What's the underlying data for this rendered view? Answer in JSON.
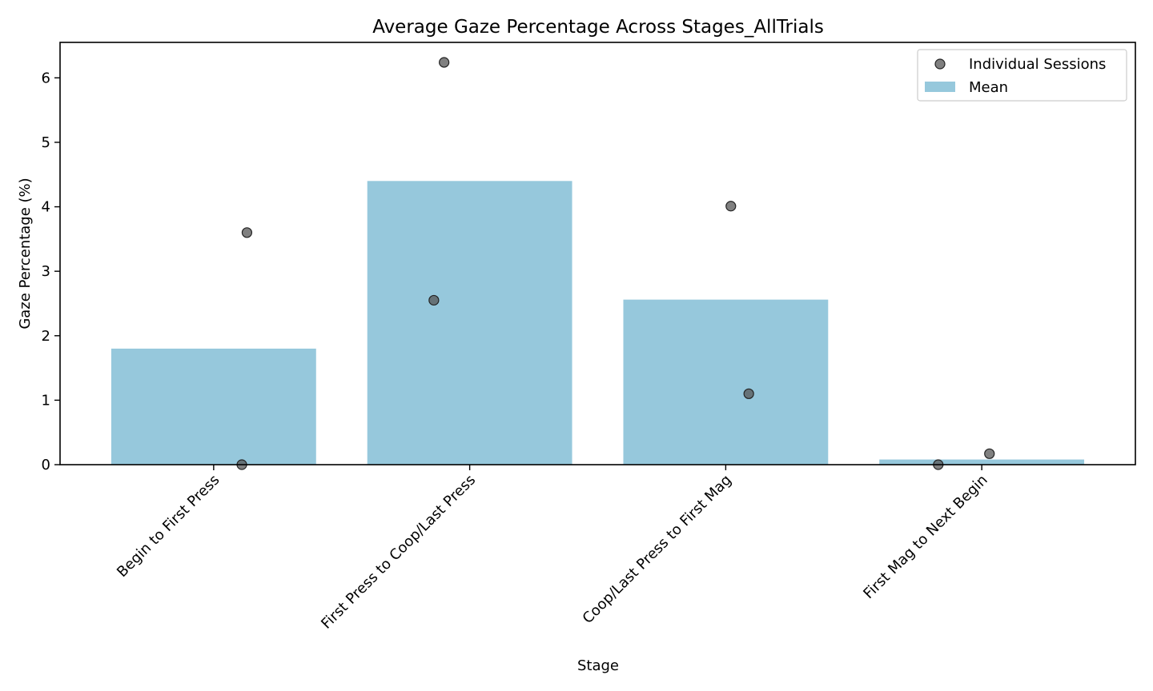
{
  "chart_data": {
    "type": "bar",
    "title": "Average Gaze Percentage Across Stages_AllTrials",
    "xlabel": "Stage",
    "ylabel": "Gaze Percentage (%)",
    "ylim": [
      0,
      6.55
    ],
    "yticks": [
      0,
      1,
      2,
      3,
      4,
      5,
      6
    ],
    "grid": false,
    "legend_position": "top-right",
    "categories": [
      "Begin to First Press",
      "First Press to Coop/Last Press",
      "Coop/Last Press to First Mag",
      "First Mag to Next Begin"
    ],
    "series": [
      {
        "name": "Mean",
        "kind": "bar",
        "color": "#96c8dc",
        "values": [
          1.8,
          4.4,
          2.56,
          0.08
        ]
      },
      {
        "name": "Individual Sessions",
        "kind": "scatter",
        "color": "#555555",
        "points": [
          {
            "category": 0,
            "offset": 0.13,
            "y": 3.6
          },
          {
            "category": 0,
            "offset": 0.11,
            "y": 0.0
          },
          {
            "category": 1,
            "offset": -0.1,
            "y": 6.24
          },
          {
            "category": 1,
            "offset": -0.14,
            "y": 2.55
          },
          {
            "category": 2,
            "offset": 0.02,
            "y": 4.01
          },
          {
            "category": 2,
            "offset": 0.09,
            "y": 1.1
          },
          {
            "category": 3,
            "offset": -0.17,
            "y": 0.0
          },
          {
            "category": 3,
            "offset": 0.03,
            "y": 0.17
          }
        ]
      }
    ],
    "legend": [
      "Individual Sessions",
      "Mean"
    ]
  }
}
